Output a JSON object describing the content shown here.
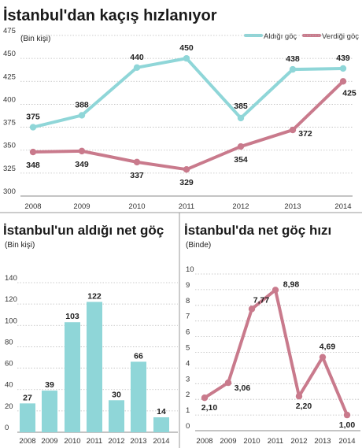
{
  "colors": {
    "teal": "#8fd6d8",
    "pink": "#c97a8c",
    "text": "#222222"
  },
  "chart_data": [
    {
      "type": "line",
      "title": "İstanbul'dan kaçış hızlanıyor",
      "unit_label": "(Bin kişi)",
      "x": [
        "2008",
        "2009",
        "2010",
        "2011",
        "2012",
        "2013",
        "2014"
      ],
      "ylim": [
        300,
        475
      ],
      "yticks": [
        "300",
        "325",
        "350",
        "375",
        "400",
        "425",
        "450",
        "475"
      ],
      "grid": true,
      "legend_position": "top-right",
      "series": [
        {
          "name": "Aldığı göç",
          "color": "#8fd6d8",
          "values": [
            375,
            388,
            440,
            450,
            385,
            438,
            439
          ],
          "labels": [
            "375",
            "388",
            "440",
            "450",
            "385",
            "438",
            "439"
          ]
        },
        {
          "name": "Verdiği göç",
          "color": "#c97a8c",
          "values": [
            348,
            349,
            337,
            329,
            354,
            372,
            425
          ],
          "labels": [
            "348",
            "349",
            "337",
            "329",
            "354",
            "372",
            "425"
          ]
        }
      ]
    },
    {
      "type": "bar",
      "title": "İstanbul'un aldığı net göç",
      "unit_label": "(Bin kişi)",
      "categories": [
        "2008",
        "2009",
        "2010",
        "2011",
        "2012",
        "2013",
        "2014"
      ],
      "values": [
        27,
        39,
        103,
        122,
        30,
        66,
        14
      ],
      "labels": [
        "27",
        "39",
        "103",
        "122",
        "30",
        "66",
        "14"
      ],
      "ylim": [
        0,
        140
      ],
      "yticks": [
        "0",
        "20",
        "40",
        "60",
        "80",
        "100",
        "120",
        "140"
      ],
      "grid": true,
      "color": "#8fd6d8"
    },
    {
      "type": "line",
      "title": "İstanbul'da net göç hızı",
      "unit_label": "(Binde)",
      "x": [
        "2008",
        "2009",
        "2010",
        "2011",
        "2012",
        "2013",
        "2014"
      ],
      "values": [
        2.1,
        3.06,
        7.77,
        8.98,
        2.2,
        4.69,
        1.0
      ],
      "labels": [
        "2,10",
        "3,06",
        "7,77",
        "8,98",
        "2,20",
        "4,69",
        "1,00"
      ],
      "ylim": [
        0,
        10
      ],
      "yticks": [
        "0",
        "1",
        "2",
        "3",
        "4",
        "5",
        "6",
        "7",
        "8",
        "9",
        "10"
      ],
      "grid": true,
      "color": "#c97a8c"
    }
  ]
}
